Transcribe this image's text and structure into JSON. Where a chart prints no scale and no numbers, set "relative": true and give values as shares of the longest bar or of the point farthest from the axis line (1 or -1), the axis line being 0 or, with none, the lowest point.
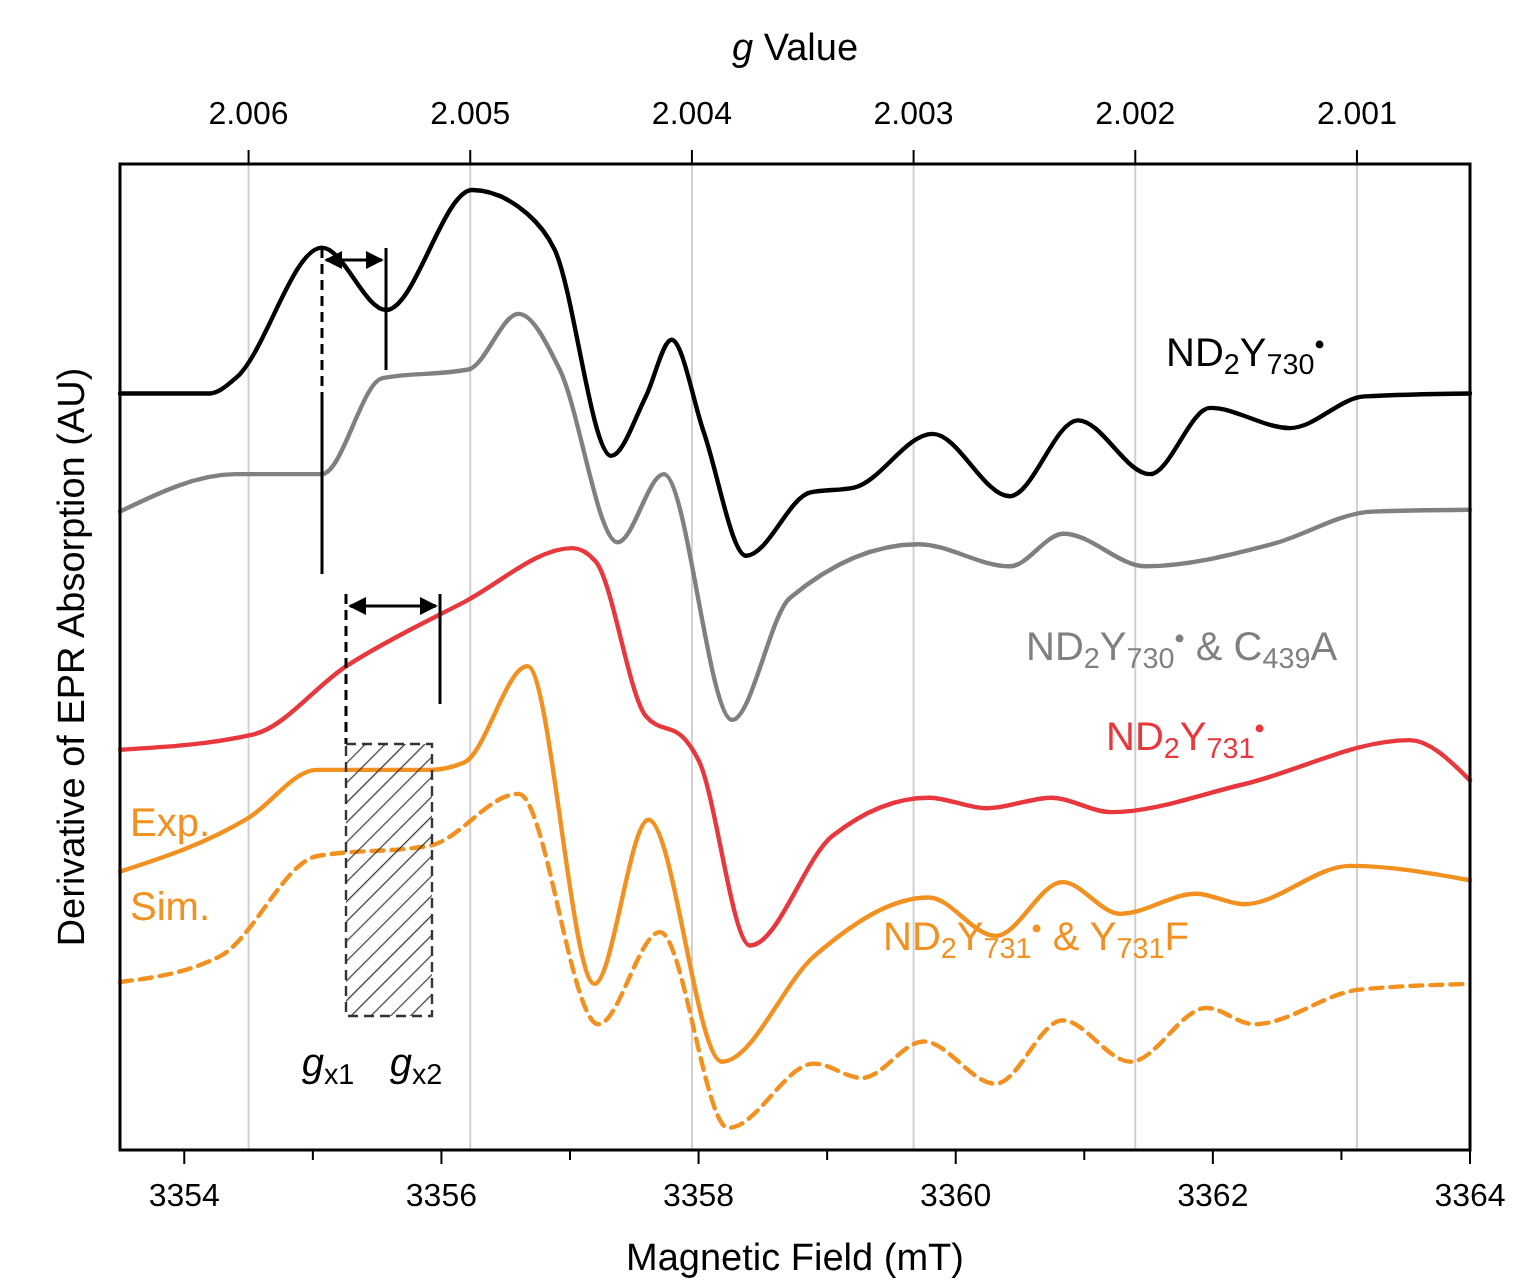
{
  "chart_data": {
    "type": "line",
    "relative": true,
    "xlabel": "Magnetic Field (mT)",
    "x2label": "g Value",
    "ylabel": "Derivative of EPR Absorption (AU)",
    "xlim": [
      3353.5,
      3364
    ],
    "xticks": [
      3354,
      {
        "value": 3355,
        "label": null
      },
      3356,
      {
        "value": 3357,
        "label": null
      },
      3358,
      {
        "value": 3359,
        "label": null
      },
      3360,
      {
        "value": 3361,
        "label": null
      },
      3362,
      {
        "value": 3363,
        "label": null
      },
      3364
    ],
    "x2lim": [
      2.00658,
      2.00049
    ],
    "x2ticks": [
      2.006,
      2.005,
      2.004,
      2.003,
      2.002,
      2.001
    ],
    "grid": "x2",
    "series": [
      {
        "name": "ND$_{2}$Y$_{730}$$^{•}$",
        "color": "#000000",
        "line_style": "solid",
        "x": [
          3353.5,
          3354.2,
          3354.4,
          3355.07,
          3355.57,
          3356.24,
          3356.67,
          3356.88,
          3357.32,
          3357.59,
          3357.79,
          3358.04,
          3358.37,
          3358.87,
          3359.21,
          3359.82,
          3360.42,
          3360.95,
          3361.51,
          3361.98,
          3362.6,
          3363.18,
          3364
        ],
        "values": [
          0.788,
          0.788,
          0.804,
          0.94,
          0.875,
          1.0,
          0.975,
          0.938,
          0.723,
          0.785,
          0.844,
          0.748,
          0.619,
          0.685,
          0.69,
          0.746,
          0.681,
          0.76,
          0.704,
          0.773,
          0.752,
          0.785,
          0.788
        ]
      },
      {
        "name": "ND$_{2}$Y$_{730}$$^{•}$ & C$_{439}$A",
        "color": "#808080",
        "line_style": "solid",
        "x": [
          3353.5,
          3354.4,
          3355.07,
          3355.54,
          3356.21,
          3356.6,
          3356.92,
          3357.37,
          3357.73,
          3358.26,
          3358.71,
          3359.71,
          3360.42,
          3360.84,
          3361.48,
          3362.46,
          3363.24,
          3364
        ],
        "values": [
          0.665,
          0.704,
          0.704,
          0.804,
          0.813,
          0.871,
          0.813,
          0.633,
          0.704,
          0.448,
          0.575,
          0.631,
          0.608,
          0.642,
          0.608,
          0.631,
          0.665,
          0.667
        ]
      },
      {
        "name": "ND$_{2}$Y$_{731}$$^{•}$",
        "color": "#e8383d",
        "line_style": "solid",
        "x": [
          3353.5,
          3354.54,
          3355.26,
          3356.18,
          3357.02,
          3357.2,
          3357.59,
          3357.9,
          3358.0,
          3358.4,
          3359.04,
          3359.79,
          3360.24,
          3360.75,
          3361.2,
          3362.24,
          3363.53,
          3364
        ],
        "values": [
          0.417,
          0.433,
          0.504,
          0.571,
          0.627,
          0.613,
          0.452,
          0.427,
          0.406,
          0.213,
          0.327,
          0.367,
          0.356,
          0.367,
          0.352,
          0.381,
          0.427,
          0.385
        ]
      },
      {
        "name": "Exp.",
        "color": "#f39120",
        "line_style": "solid",
        "x": [
          3353.5,
          3354.5,
          3355.03,
          3355.91,
          3356.18,
          3356.67,
          3357.19,
          3357.61,
          3358.18,
          3358.9,
          3359.79,
          3360.31,
          3360.83,
          3361.28,
          3361.87,
          3362.24,
          3363.07,
          3364
        ],
        "values": [
          0.29,
          0.346,
          0.396,
          0.396,
          0.404,
          0.504,
          0.173,
          0.344,
          0.092,
          0.202,
          0.263,
          0.223,
          0.279,
          0.246,
          0.267,
          0.256,
          0.296,
          0.281
        ]
      },
      {
        "name": "Sim.",
        "color": "#f39120",
        "line_style": "dashed",
        "x": [
          3353.5,
          3354.28,
          3355.03,
          3355.91,
          3356.6,
          3357.22,
          3357.7,
          3358.23,
          3358.9,
          3359.27,
          3359.75,
          3360.31,
          3360.83,
          3361.36,
          3361.95,
          3362.32,
          3363.14,
          3364
        ],
        "values": [
          0.175,
          0.202,
          0.306,
          0.317,
          0.371,
          0.131,
          0.227,
          0.023,
          0.09,
          0.075,
          0.113,
          0.069,
          0.135,
          0.092,
          0.148,
          0.131,
          0.167,
          0.173
        ]
      }
    ],
    "annotations": [
      "ND$_{2}$Y$_{731}$$^{•}$ & Y$_{731}$F",
      "g$_{x1}$",
      "g$_{x2}$"
    ]
  }
}
